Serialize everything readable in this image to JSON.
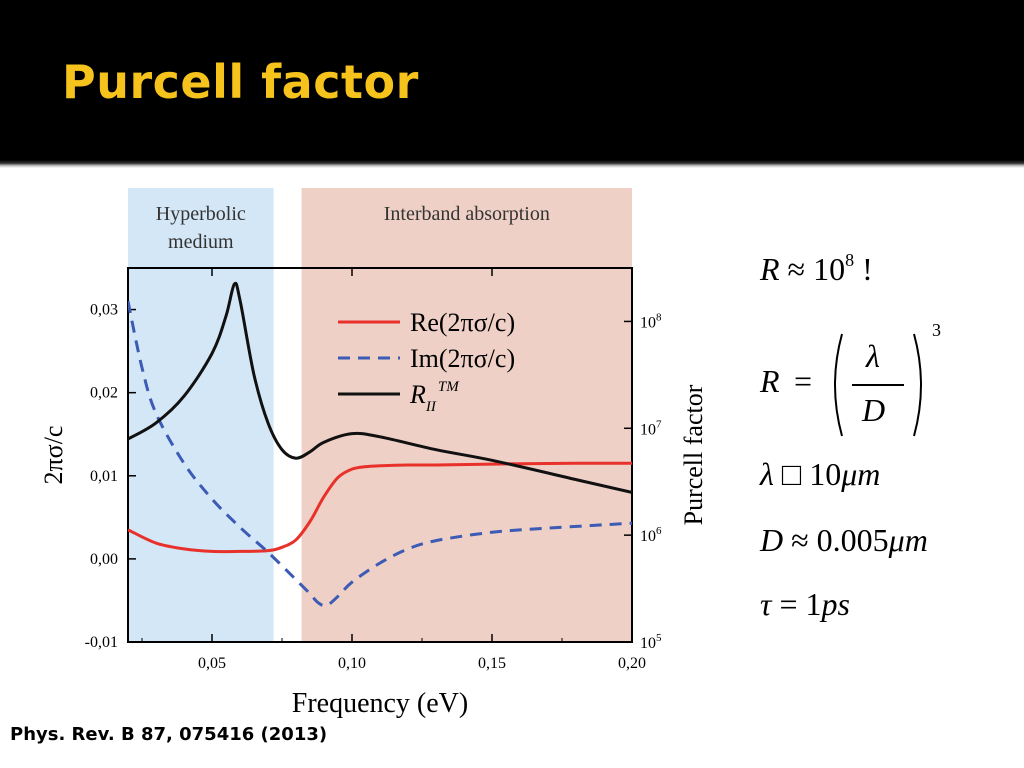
{
  "slide": {
    "title": "Purcell factor",
    "citation": "Phys. Rev. B 87, 075416 (2013)"
  },
  "formulas": {
    "r_approx": {
      "lhs": "R",
      "op": "≈",
      "base": "10",
      "exp": "8",
      "tail": " !"
    },
    "r_def": {
      "lhs": "R",
      "op": "=",
      "num": "λ",
      "den": "D",
      "exp": "3"
    },
    "lambda": {
      "sym": "λ",
      "op": "□",
      "val": "10",
      "unit": "μm"
    },
    "d": {
      "sym": "D",
      "op": "≈",
      "val": "0.005",
      "unit": "μm"
    },
    "tau": {
      "sym": "τ",
      "op": "=",
      "val": "1",
      "unit": "ps"
    }
  },
  "chart_data": {
    "type": "line",
    "xlabel": "Frequency (eV)",
    "ylabel_left": "2πσ/c",
    "ylabel_right": "Purcell factor",
    "xlim": [
      0.02,
      0.2
    ],
    "ylim_left": [
      -0.01,
      0.035
    ],
    "ylim_right_log10": [
      5,
      8.5
    ],
    "x_ticks": [
      {
        "v": 0.05,
        "label": "0,05"
      },
      {
        "v": 0.1,
        "label": "0,10"
      },
      {
        "v": 0.15,
        "label": "0,15"
      },
      {
        "v": 0.2,
        "label": "0,20"
      }
    ],
    "y_left_ticks": [
      {
        "v": -0.01,
        "label": "-0,01"
      },
      {
        "v": 0.0,
        "label": "0,00"
      },
      {
        "v": 0.01,
        "label": "0,01"
      },
      {
        "v": 0.02,
        "label": "0,02"
      },
      {
        "v": 0.03,
        "label": "0,03"
      }
    ],
    "y_right_ticks": [
      {
        "v": 5,
        "base": "10",
        "exp": "5"
      },
      {
        "v": 6,
        "base": "10",
        "exp": "6"
      },
      {
        "v": 7,
        "base": "10",
        "exp": "7"
      },
      {
        "v": 8,
        "base": "10",
        "exp": "8"
      }
    ],
    "regions": [
      {
        "label_lines": [
          "Hyperbolic",
          "medium"
        ],
        "x0": 0.02,
        "x1": 0.072,
        "color": "#d4e7f6"
      },
      {
        "label_lines": [
          "Interband absorption"
        ],
        "x0": 0.082,
        "x1": 0.2,
        "color": "#efd0c6"
      }
    ],
    "legend": {
      "position": "top-right",
      "entries": [
        {
          "series": 0,
          "text": "Re(2πσ/c)"
        },
        {
          "series": 1,
          "text": "Im(2πσ/c)"
        },
        {
          "series": 2,
          "text": "R",
          "sub": "II",
          "sup": "TM"
        }
      ]
    },
    "series": [
      {
        "axis": "left",
        "color": "#e8312b",
        "dash": "solid",
        "x": [
          0.02,
          0.03,
          0.04,
          0.05,
          0.06,
          0.07,
          0.075,
          0.08,
          0.085,
          0.09,
          0.095,
          0.1,
          0.105,
          0.11,
          0.12,
          0.13,
          0.15,
          0.18,
          0.2
        ],
        "y": [
          0.0035,
          0.0019,
          0.0012,
          0.0009,
          0.0009,
          0.001,
          0.0014,
          0.0023,
          0.0045,
          0.0075,
          0.0098,
          0.0108,
          0.0111,
          0.0112,
          0.0113,
          0.0113,
          0.0114,
          0.0115,
          0.0115
        ]
      },
      {
        "axis": "left",
        "color": "#3b5bb5",
        "dash": "dashed",
        "x": [
          0.02,
          0.025,
          0.03,
          0.04,
          0.05,
          0.06,
          0.07,
          0.08,
          0.085,
          0.088,
          0.091,
          0.095,
          0.1,
          0.11,
          0.12,
          0.13,
          0.15,
          0.17,
          0.2
        ],
        "y": [
          0.031,
          0.023,
          0.0175,
          0.0115,
          0.0072,
          0.0038,
          0.0008,
          -0.0025,
          -0.0042,
          -0.0053,
          -0.0056,
          -0.0045,
          -0.0028,
          -0.0005,
          0.0012,
          0.0022,
          0.0032,
          0.0037,
          0.0043
        ]
      },
      {
        "axis": "right_log10",
        "color": "#111111",
        "dash": "solid",
        "x": [
          0.02,
          0.03,
          0.04,
          0.05,
          0.055,
          0.058,
          0.06,
          0.065,
          0.07,
          0.075,
          0.08,
          0.085,
          0.09,
          0.1,
          0.11,
          0.13,
          0.15,
          0.18,
          0.2
        ],
        "y": [
          6.9,
          7.05,
          7.3,
          7.7,
          8.05,
          8.35,
          8.2,
          7.5,
          7.05,
          6.8,
          6.72,
          6.78,
          6.87,
          6.95,
          6.92,
          6.8,
          6.7,
          6.52,
          6.4
        ]
      }
    ]
  }
}
